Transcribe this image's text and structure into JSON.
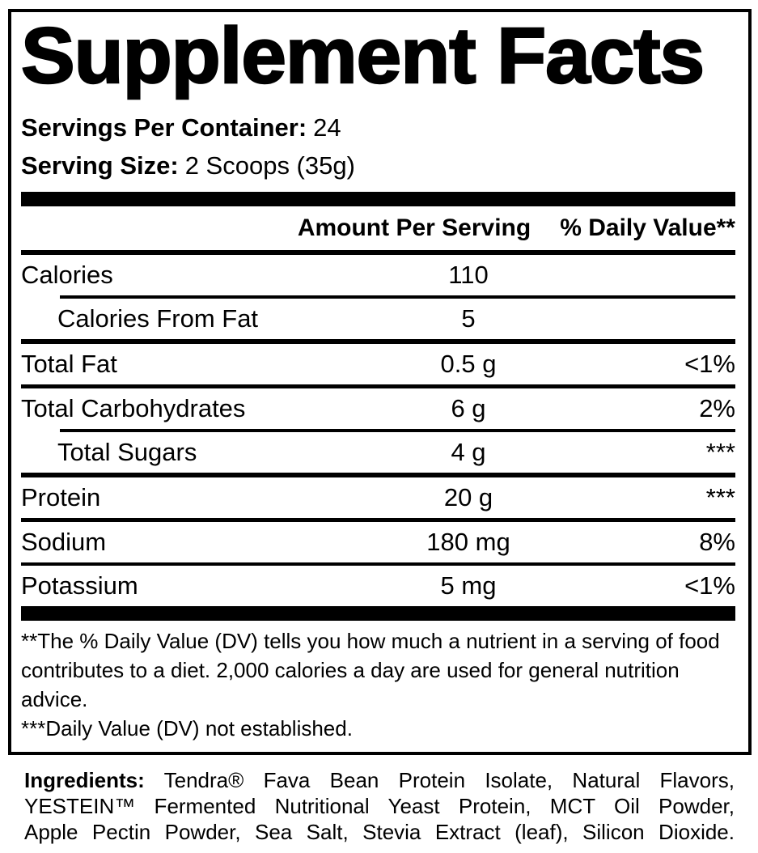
{
  "label": {
    "title": "Supplement Facts",
    "serving_info": {
      "servings_label": "Servings Per Container:",
      "servings_value": "24",
      "size_label": "Serving Size:",
      "size_value": "2 Scoops (35g)"
    },
    "table": {
      "amount_header": "Amount Per Serving",
      "dv_header": "% Daily Value**",
      "rows": [
        {
          "name": "Calories",
          "amount": "110",
          "dv": ""
        },
        {
          "name": "Calories From Fat",
          "amount": "5",
          "dv": ""
        },
        {
          "name": "Total Fat",
          "amount": "0.5 g",
          "dv": "<1%"
        },
        {
          "name": "Total Carbohydrates",
          "amount": "6 g",
          "dv": "2%"
        },
        {
          "name": "Total Sugars",
          "amount": "4 g",
          "dv": "***"
        },
        {
          "name": "Protein",
          "amount": "20 g",
          "dv": "***"
        },
        {
          "name": "Sodium",
          "amount": "180 mg",
          "dv": "8%"
        },
        {
          "name": "Potassium",
          "amount": "5 mg",
          "dv": "<1%"
        }
      ]
    },
    "footnotes": {
      "dv_note": "**The % Daily Value (DV) tells you how much a nutrient in a serving of food contributes to a diet. 2,000 calories a day are used for general nutrition advice.",
      "not_established_note": "***Daily Value (DV) not established."
    },
    "ingredients": {
      "label": "Ingredients:",
      "line1": "Tendra® Fava Bean Protein Isolate, Natural Flavors,",
      "line2": "YESTEIN™ Fermented Nutritional Yeast Protein, MCT Oil Powder,",
      "line3": "Apple Pectin Powder, Sea Salt, Stevia Extract (leaf), Silicon Dioxide."
    },
    "colors": {
      "text": "#000000",
      "background": "#ffffff"
    }
  }
}
